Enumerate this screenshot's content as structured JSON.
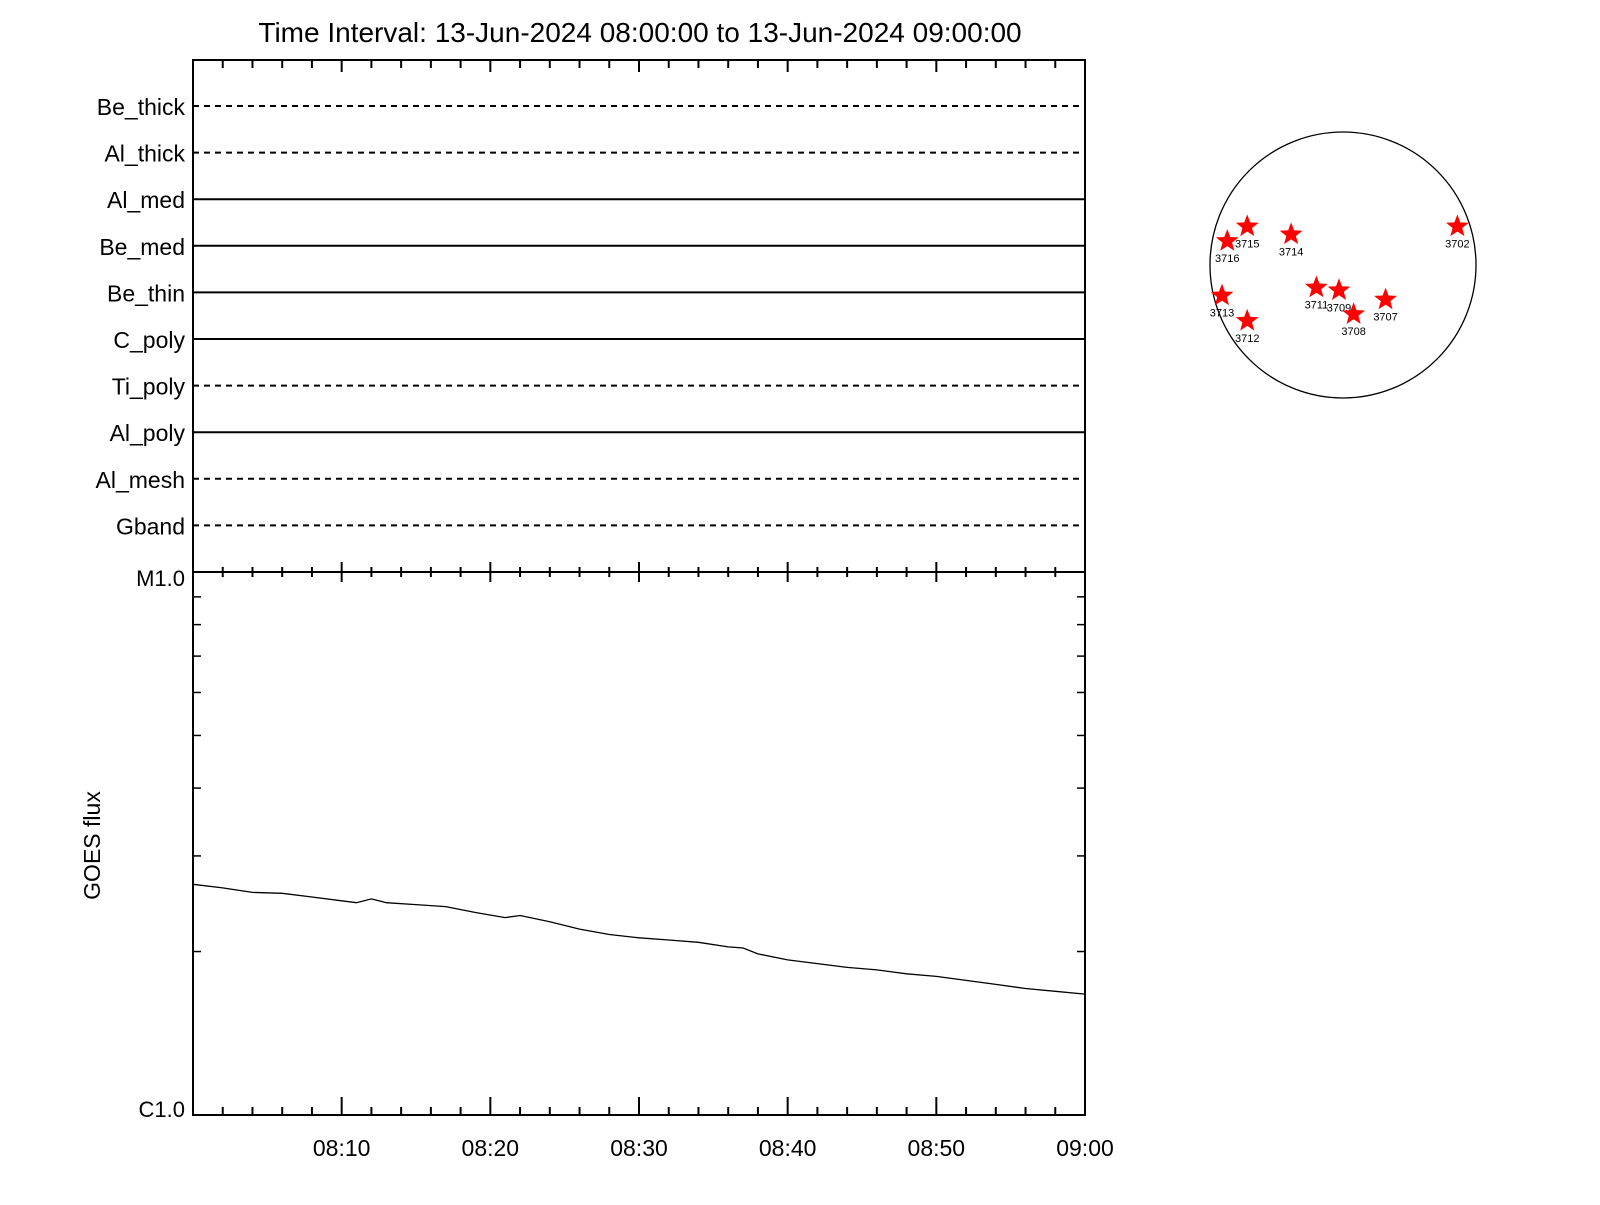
{
  "title": "Time Interval: 13-Jun-2024 08:00:00 to 13-Jun-2024 09:00:00",
  "colors": {
    "axis": "#000000",
    "star": "#ff0000",
    "background": "#ffffff"
  },
  "chart_data": [
    {
      "type": "table",
      "description_of_panel": "",
      "channels": [
        {
          "name": "Be_thick",
          "style": "dashed"
        },
        {
          "name": "Al_thick",
          "style": "dashed"
        },
        {
          "name": "Al_med",
          "style": "solid"
        },
        {
          "name": "Be_med",
          "style": "solid"
        },
        {
          "name": "Be_thin",
          "style": "solid"
        },
        {
          "name": "C_poly",
          "style": "solid"
        },
        {
          "name": "Ti_poly",
          "style": "dashed"
        },
        {
          "name": "Al_poly",
          "style": "solid"
        },
        {
          "name": "Al_mesh",
          "style": "dashed"
        },
        {
          "name": "Gband",
          "style": "dashed"
        }
      ],
      "x_range_minutes": [
        0,
        60
      ]
    },
    {
      "type": "line",
      "ylabel": "GOES flux",
      "yscale": "log",
      "ytick_labels": [
        "M1.0",
        "C1.0"
      ],
      "ylim": [
        1e-06,
        1e-05
      ],
      "xtick_labels": [
        "08:10",
        "08:20",
        "08:30",
        "08:40",
        "08:50",
        "09:00"
      ],
      "xtick_minutes": [
        10,
        20,
        30,
        40,
        50,
        60
      ],
      "x_range_minutes": [
        0,
        60
      ],
      "series": [
        {
          "x": [
            0,
            2,
            4,
            6,
            8,
            10,
            11,
            12,
            13,
            15,
            17,
            19,
            21,
            22,
            24,
            26,
            28,
            30,
            32,
            34,
            36,
            37,
            38,
            40,
            42,
            44,
            46,
            48,
            50,
            52,
            54,
            56,
            58,
            60
          ],
          "y": [
            2.66e-06,
            2.62e-06,
            2.57e-06,
            2.56e-06,
            2.52e-06,
            2.48e-06,
            2.46e-06,
            2.5e-06,
            2.46e-06,
            2.44e-06,
            2.42e-06,
            2.36e-06,
            2.31e-06,
            2.33e-06,
            2.27e-06,
            2.2e-06,
            2.15e-06,
            2.12e-06,
            2.1e-06,
            2.08e-06,
            2.04e-06,
            2.03e-06,
            1.98e-06,
            1.93e-06,
            1.9e-06,
            1.87e-06,
            1.85e-06,
            1.82e-06,
            1.8e-06,
            1.77e-06,
            1.74e-06,
            1.71e-06,
            1.69e-06,
            1.67e-06
          ]
        }
      ]
    },
    {
      "type": "scatter",
      "description_of_panel": "",
      "points": [
        {
          "label": "3716",
          "x": -0.87,
          "y": 0.18
        },
        {
          "label": "3715",
          "x": -0.72,
          "y": 0.29
        },
        {
          "label": "3714",
          "x": -0.39,
          "y": 0.23
        },
        {
          "label": "3702",
          "x": 0.86,
          "y": 0.29
        },
        {
          "label": "3713",
          "x": -0.91,
          "y": -0.23
        },
        {
          "label": "3711",
          "x": -0.2,
          "y": -0.17
        },
        {
          "label": "3709",
          "x": -0.03,
          "y": -0.19
        },
        {
          "label": "3707",
          "x": 0.32,
          "y": -0.26
        },
        {
          "label": "3708",
          "x": 0.08,
          "y": -0.37
        },
        {
          "label": "3712",
          "x": -0.72,
          "y": -0.42
        }
      ]
    }
  ]
}
